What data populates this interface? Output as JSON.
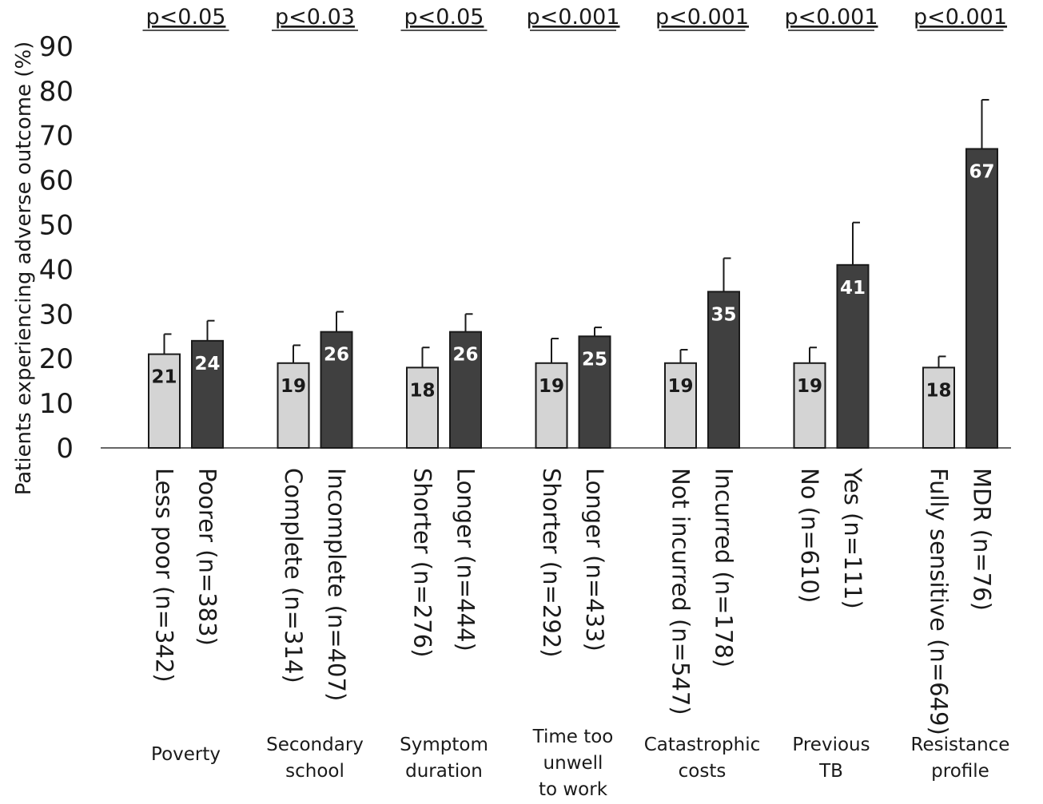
{
  "chart_data": {
    "type": "bar",
    "ylabel": "Patients experiencing adverse outcome (%)",
    "ylim": [
      0,
      90
    ],
    "yticks": [
      0,
      10,
      20,
      30,
      40,
      50,
      60,
      70,
      80,
      90
    ],
    "grid": false,
    "colors": {
      "light": "#d4d4d4",
      "dark": "#404040",
      "outline": "#1a1a1a"
    },
    "groups": [
      {
        "name": "Poverty",
        "label_lines": [
          "Poverty"
        ],
        "pvalue": "p<0.05",
        "bars": [
          {
            "label": "Less poor (n=342)",
            "value": 21,
            "error_upper": 25.5,
            "shade": "light"
          },
          {
            "label": "Poorer (n=383)",
            "value": 24,
            "error_upper": 28.5,
            "shade": "dark"
          }
        ]
      },
      {
        "name": "Secondary school",
        "label_lines": [
          "Secondary",
          "school"
        ],
        "pvalue": "p<0.03",
        "bars": [
          {
            "label": "Complete (n=314)",
            "value": 19,
            "error_upper": 23,
            "shade": "light"
          },
          {
            "label": "Incomplete (n=407)",
            "value": 26,
            "error_upper": 30.5,
            "shade": "dark"
          }
        ]
      },
      {
        "name": "Symptom duration",
        "label_lines": [
          "Symptom",
          "duration"
        ],
        "pvalue": "p<0.05",
        "bars": [
          {
            "label": "Shorter (n=276)",
            "value": 18,
            "error_upper": 22.5,
            "shade": "light"
          },
          {
            "label": "Longer (n=444)",
            "value": 26,
            "error_upper": 30,
            "shade": "dark"
          }
        ]
      },
      {
        "name": "Time too unwell to work",
        "label_lines": [
          "Time too",
          "unwell",
          "to work"
        ],
        "pvalue": "p<0.001",
        "bars": [
          {
            "label": "Shorter (n=292)",
            "value": 19,
            "error_upper": 24.5,
            "shade": "light"
          },
          {
            "label": "Longer (n=433)",
            "value": 25,
            "error_upper": 27,
            "shade": "dark"
          }
        ]
      },
      {
        "name": "Catastrophic costs",
        "label_lines": [
          "Catastrophic",
          "costs"
        ],
        "pvalue": "p<0.001",
        "bars": [
          {
            "label": "Not incurred (n=547)",
            "value": 19,
            "error_upper": 22,
            "shade": "light"
          },
          {
            "label": "Incurred (n=178)",
            "value": 35,
            "error_upper": 42.5,
            "shade": "dark"
          }
        ]
      },
      {
        "name": "Previous TB",
        "label_lines": [
          "Previous",
          "TB"
        ],
        "pvalue": "p<0.001",
        "bars": [
          {
            "label": "No (n=610)",
            "value": 19,
            "error_upper": 22.5,
            "shade": "light"
          },
          {
            "label": "Yes (n=111)",
            "value": 41,
            "error_upper": 50.5,
            "shade": "dark"
          }
        ]
      },
      {
        "name": "Resistance profile",
        "label_lines": [
          "Resistance",
          "profile"
        ],
        "pvalue": "p<0.001",
        "bars": [
          {
            "label": "Fully sensitive (n=649)",
            "value": 18,
            "error_upper": 20.5,
            "shade": "light"
          },
          {
            "label": "MDR (n=76)",
            "value": 67,
            "error_upper": 78,
            "shade": "dark"
          }
        ]
      }
    ]
  }
}
